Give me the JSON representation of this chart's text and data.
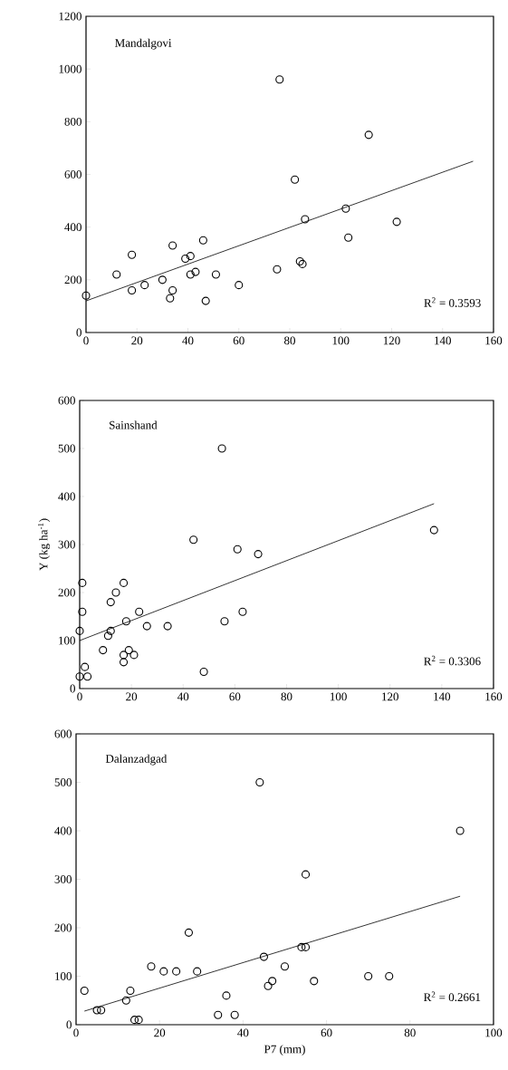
{
  "chart_data": [
    {
      "type": "scatter",
      "annotations": [
        "Mandalgovi",
        "R$^{2}$ = 0.3593"
      ],
      "xlim": [
        0,
        160
      ],
      "ylim": [
        0,
        1200
      ],
      "xticks": [
        0,
        20,
        40,
        60,
        80,
        100,
        120,
        140,
        160
      ],
      "yticks": [
        0,
        200,
        400,
        600,
        800,
        1000,
        1200
      ],
      "series": [
        {
          "marker": "circle",
          "color": "#000000",
          "x": [
            0,
            12,
            18,
            18,
            23,
            30,
            33,
            34,
            34,
            39,
            41,
            41,
            43,
            46,
            47,
            51,
            60,
            75,
            76,
            82,
            84,
            85,
            86,
            102,
            103,
            111,
            122
          ],
          "values": [
            140,
            220,
            295,
            160,
            180,
            200,
            130,
            160,
            330,
            280,
            290,
            220,
            230,
            350,
            120,
            220,
            180,
            240,
            960,
            580,
            270,
            260,
            430,
            470,
            360,
            750,
            420
          ]
        },
        {
          "type": "line",
          "color": "#000000",
          "x": [
            0,
            152
          ],
          "values": [
            120,
            650
          ]
        }
      ]
    },
    {
      "type": "scatter",
      "annotations": [
        "Sainshand",
        "R$^{2}$ = 0.3306"
      ],
      "ylabel": "Y (kg ha$^{-1}$)",
      "xlim": [
        0,
        160
      ],
      "ylim": [
        0,
        600
      ],
      "xticks": [
        0,
        20,
        40,
        60,
        80,
        100,
        120,
        140,
        160
      ],
      "yticks": [
        0,
        100,
        200,
        300,
        400,
        500,
        600
      ],
      "series": [
        {
          "marker": "circle",
          "color": "#000000",
          "x": [
            0,
            0,
            1,
            1,
            2,
            3,
            9,
            11,
            12,
            12,
            14,
            17,
            17,
            17,
            18,
            19,
            21,
            23,
            26,
            34,
            44,
            48,
            55,
            56,
            61,
            63,
            69,
            137
          ],
          "values": [
            25,
            120,
            220,
            160,
            45,
            25,
            80,
            110,
            120,
            180,
            200,
            220,
            55,
            70,
            140,
            80,
            70,
            160,
            130,
            130,
            310,
            35,
            500,
            140,
            290,
            160,
            280,
            330
          ]
        },
        {
          "type": "line",
          "color": "#000000",
          "x": [
            0,
            137
          ],
          "values": [
            100,
            385
          ]
        }
      ]
    },
    {
      "type": "scatter",
      "annotations": [
        "Dalanzadgad",
        "R$^{2}$ = 0.2661"
      ],
      "xlabel": "P7 (mm)",
      "xlim": [
        0,
        100
      ],
      "ylim": [
        0,
        600
      ],
      "xticks": [
        0,
        20,
        40,
        60,
        80,
        100
      ],
      "yticks": [
        0,
        100,
        200,
        300,
        400,
        500,
        600
      ],
      "series": [
        {
          "marker": "circle",
          "color": "#000000",
          "x": [
            2,
            5,
            6,
            12,
            13,
            14,
            15,
            18,
            21,
            24,
            27,
            29,
            34,
            36,
            38,
            44,
            45,
            46,
            47,
            50,
            54,
            55,
            55,
            57,
            70,
            75,
            92
          ],
          "values": [
            70,
            30,
            30,
            50,
            70,
            10,
            10,
            120,
            110,
            110,
            190,
            110,
            20,
            60,
            20,
            500,
            140,
            80,
            90,
            120,
            160,
            160,
            310,
            90,
            100,
            100,
            400
          ]
        },
        {
          "type": "line",
          "color": "#000000",
          "x": [
            2,
            92
          ],
          "values": [
            28,
            265
          ]
        }
      ]
    }
  ]
}
